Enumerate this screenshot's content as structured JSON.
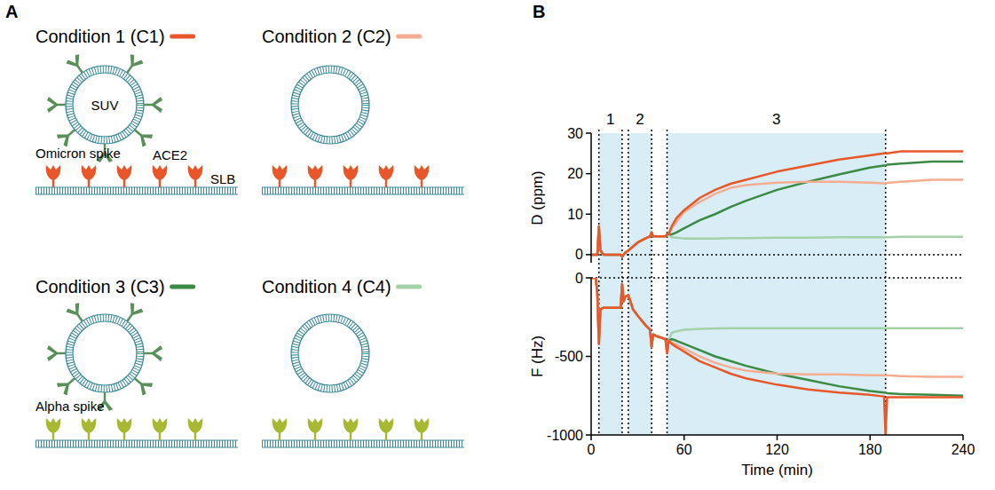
{
  "panel_labels": [
    "A",
    "B"
  ],
  "diagram": {
    "labels": {
      "suv": "SUV",
      "ace2": "ACE2",
      "omicron": "Omicron spike",
      "slb": "SLB",
      "alpha": "Alpha spike"
    }
  },
  "chart_data": [
    {
      "type": "line",
      "y_label": "D (ppm)",
      "tick_labels": "y",
      "xlim": [
        0,
        240
      ],
      "ylim": [
        -2,
        30
      ],
      "yticks": [
        0,
        10,
        20,
        30
      ],
      "hline": 0,
      "regions": [
        {
          "label": "1",
          "start": 5,
          "end": 20
        },
        {
          "label": "2",
          "start": 24,
          "end": 39
        },
        {
          "label": "3",
          "start": 49,
          "end": 190
        }
      ],
      "x": [
        0,
        3,
        4,
        5,
        6,
        8,
        15,
        19,
        20,
        21,
        22,
        24,
        27,
        30,
        35,
        38,
        39,
        40,
        42,
        45,
        48,
        49,
        50,
        52,
        55,
        60,
        70,
        80,
        90,
        100,
        120,
        140,
        160,
        180,
        189,
        190,
        191,
        200,
        220,
        240
      ],
      "series": [
        {
          "name": "Condition 1 (C1)",
          "color": "#e8572a",
          "values": [
            0,
            0,
            0,
            7,
            1,
            0,
            0,
            0,
            -0.5,
            0,
            0.5,
            1,
            2,
            3,
            4,
            4.5,
            5.5,
            4.5,
            4.5,
            4.5,
            4.5,
            5,
            5,
            7,
            9,
            11,
            14,
            16,
            17.5,
            18.5,
            20.5,
            22,
            23.5,
            24.5,
            25,
            25,
            25,
            25.5,
            25.5,
            25.5
          ]
        },
        {
          "name": "Condition 2 (C2)",
          "color": "#f5ad92",
          "values": [
            0,
            0,
            0,
            7,
            1,
            0,
            0,
            0,
            -0.5,
            0,
            0.5,
            1,
            2,
            3,
            4,
            4.5,
            5.5,
            4.5,
            4.5,
            4.5,
            4.5,
            5,
            5,
            6.5,
            8,
            10.5,
            13,
            15,
            16.5,
            17.2,
            17.8,
            18,
            18,
            17.8,
            17.6,
            17.6,
            17.7,
            18,
            18.5,
            18.5
          ]
        },
        {
          "name": "Condition 3 (C3)",
          "color": "#3a8a45",
          "values": [
            0,
            0,
            0,
            7,
            1,
            0,
            0,
            0,
            -0.5,
            0,
            0.5,
            1,
            2,
            3,
            4,
            4.5,
            5.5,
            4.5,
            4.5,
            4.5,
            4.5,
            5,
            5,
            5,
            5.5,
            6.5,
            8.5,
            10,
            11.8,
            13.3,
            16,
            18,
            19.8,
            21.5,
            22,
            22,
            22.2,
            22.5,
            23,
            23
          ]
        },
        {
          "name": "Condition 4 (C4)",
          "color": "#a5d1a8",
          "values": [
            0,
            0,
            0,
            7,
            1,
            0,
            0,
            0,
            -0.5,
            0,
            0.5,
            1,
            2,
            3,
            4,
            4.5,
            5.5,
            4.5,
            4.5,
            4.5,
            4.5,
            5,
            5,
            4.3,
            4.2,
            4,
            4,
            4,
            4.1,
            4.1,
            4.2,
            4.2,
            4.3,
            4.3,
            4.3,
            4.3,
            4.3,
            4.4,
            4.4,
            4.4
          ]
        }
      ]
    },
    {
      "type": "line",
      "y_label": "F (Hz)",
      "x_label": "Time (min)",
      "xlim": [
        0,
        240
      ],
      "xticks": [
        0,
        60,
        120,
        180,
        240
      ],
      "ylim": [
        -1000,
        0
      ],
      "yticks": [
        -1000,
        -500,
        0
      ],
      "hline": 0,
      "x": [
        0,
        3,
        4,
        5,
        6,
        8,
        15,
        19,
        20,
        21,
        22,
        24,
        27,
        30,
        35,
        38,
        39,
        40,
        42,
        45,
        48,
        49,
        50,
        52,
        55,
        60,
        70,
        80,
        90,
        100,
        120,
        140,
        160,
        180,
        189,
        190,
        191,
        200,
        220,
        240
      ],
      "series": [
        {
          "name": "Condition 1 (C1)",
          "color": "#e8572a",
          "values": [
            0,
            0,
            -100,
            -420,
            -200,
            -190,
            -190,
            -190,
            -40,
            -150,
            -120,
            -110,
            -200,
            -240,
            -300,
            -330,
            -440,
            -360,
            -370,
            -380,
            -390,
            -480,
            -400,
            -420,
            -440,
            -470,
            -530,
            -570,
            -610,
            -640,
            -680,
            -710,
            -730,
            -745,
            -755,
            -1000,
            -760,
            -760,
            -760,
            -760
          ]
        },
        {
          "name": "Condition 2 (C2)",
          "color": "#f5ad92",
          "values": [
            0,
            0,
            -100,
            -420,
            -200,
            -190,
            -190,
            -190,
            -40,
            -150,
            -120,
            -110,
            -200,
            -240,
            -300,
            -330,
            -440,
            -360,
            -370,
            -380,
            -390,
            -480,
            -400,
            -410,
            -425,
            -450,
            -500,
            -540,
            -570,
            -590,
            -610,
            -615,
            -615,
            -620,
            -620,
            -620,
            -620,
            -625,
            -630,
            -630
          ]
        },
        {
          "name": "Condition 3 (C3)",
          "color": "#3a8a45",
          "values": [
            0,
            0,
            -100,
            -420,
            -200,
            -190,
            -190,
            -190,
            -40,
            -150,
            -120,
            -110,
            -200,
            -240,
            -300,
            -330,
            -440,
            -360,
            -370,
            -380,
            -390,
            -480,
            -400,
            -390,
            -400,
            -420,
            -460,
            -500,
            -530,
            -560,
            -610,
            -650,
            -690,
            -720,
            -730,
            -730,
            -735,
            -740,
            -745,
            -750
          ]
        },
        {
          "name": "Condition 4 (C4)",
          "color": "#a5d1a8",
          "values": [
            0,
            0,
            -100,
            -420,
            -200,
            -190,
            -190,
            -190,
            -40,
            -150,
            -120,
            -110,
            -200,
            -240,
            -300,
            -330,
            -440,
            -360,
            -370,
            -380,
            -390,
            -480,
            -400,
            -350,
            -340,
            -330,
            -325,
            -322,
            -320,
            -320,
            -320,
            -320,
            -320,
            -320,
            -320,
            -320,
            -320,
            -320,
            -320,
            -320
          ]
        }
      ]
    }
  ]
}
